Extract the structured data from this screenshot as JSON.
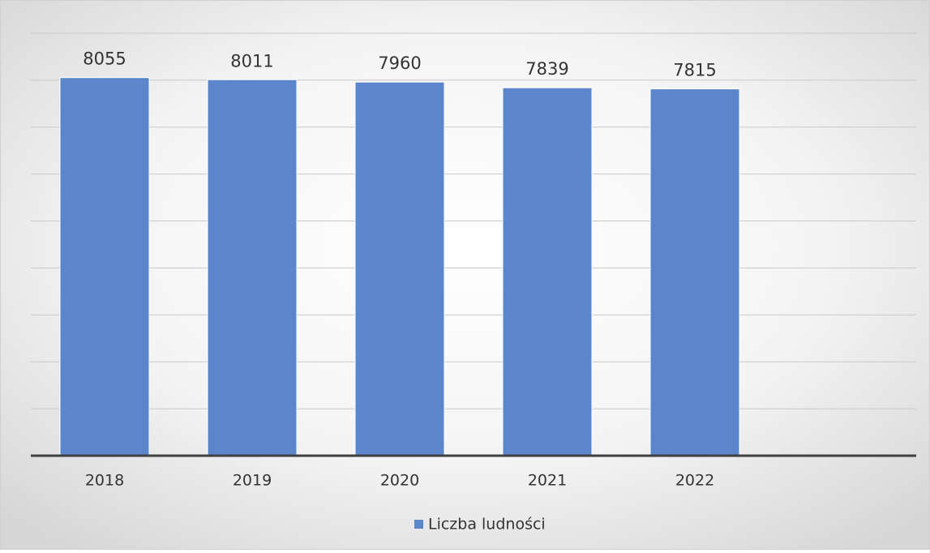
{
  "chart_data": {
    "type": "bar",
    "categories": [
      "2018",
      "2019",
      "2020",
      "2021",
      "2022",
      null
    ],
    "series": [
      {
        "name": "Liczba ludności",
        "color": "#5b86cc",
        "values": [
          8055,
          8011,
          7960,
          7839,
          7815,
          null
        ]
      }
    ],
    "ylim": [
      0,
      9000
    ],
    "yticks": [
      0,
      1000,
      2000,
      3000,
      4000,
      5000,
      6000,
      7000,
      8000,
      9000
    ],
    "grid": true,
    "legend": "bottom"
  }
}
